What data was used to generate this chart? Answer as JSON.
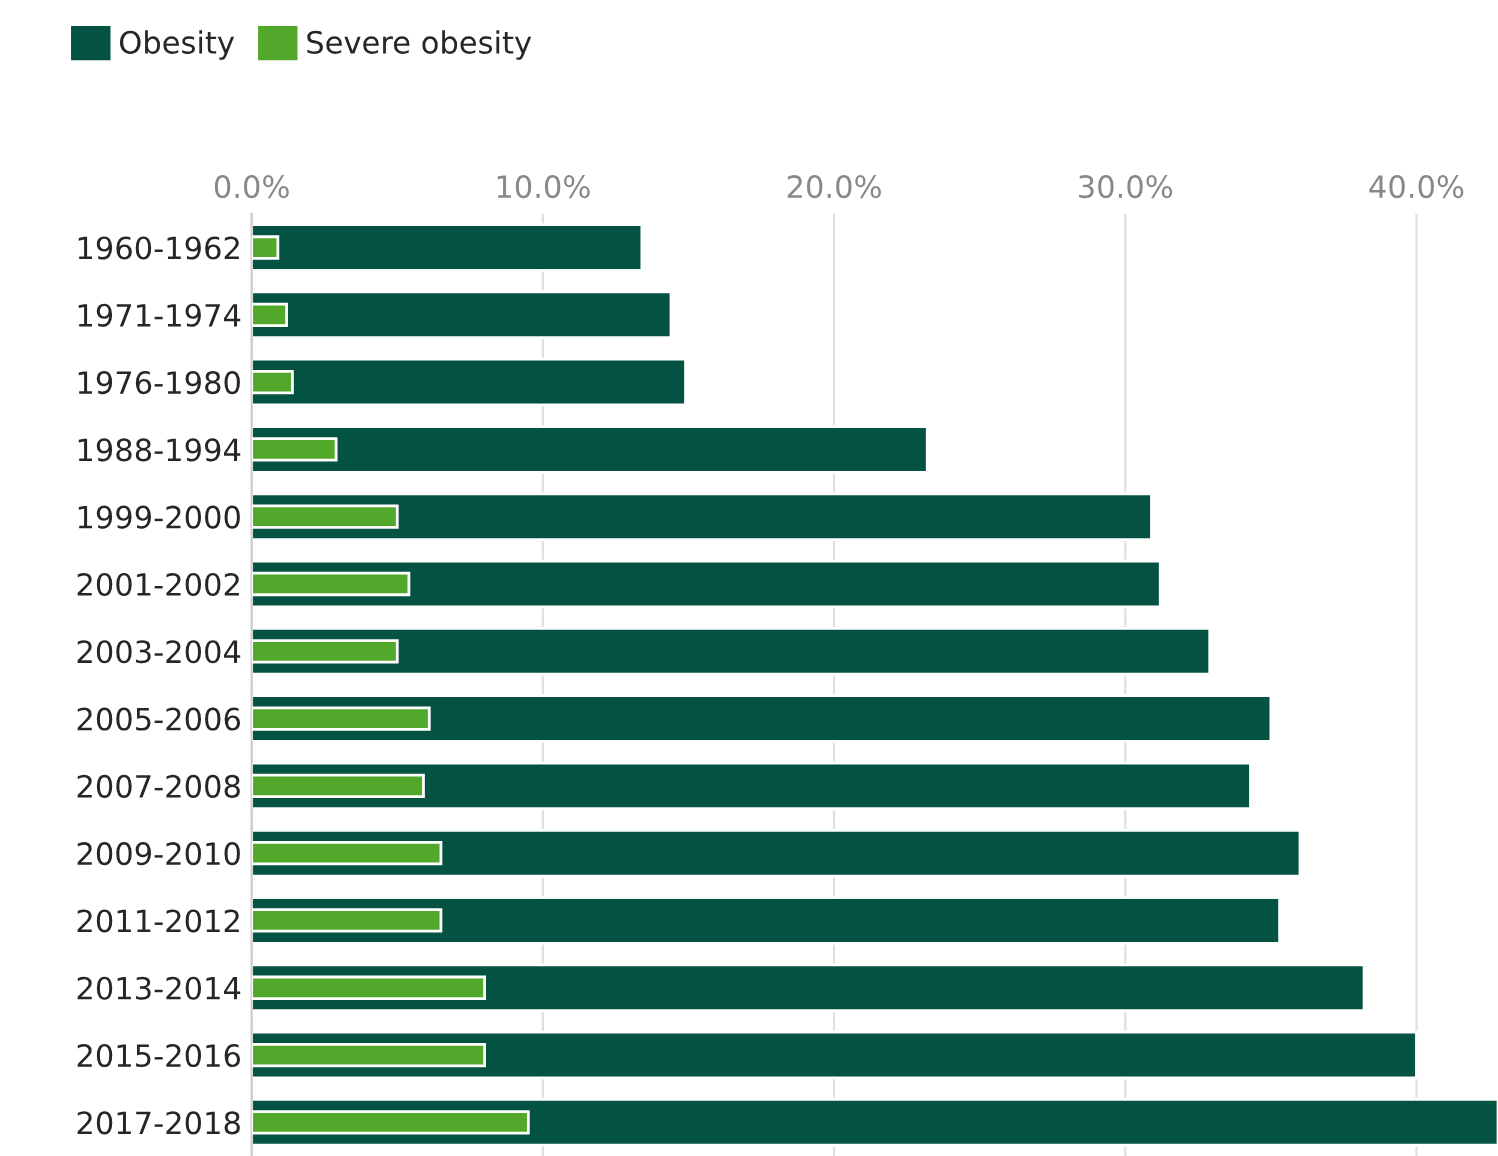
{
  "chart_data": {
    "type": "bar",
    "orientation": "horizontal",
    "categories": [
      "1960-1962",
      "1971-1974",
      "1976-1980",
      "1988-1994",
      "1999-2000",
      "2001-2002",
      "2003-2004",
      "2005-2006",
      "2007-2008",
      "2009-2010",
      "2011-2012",
      "2013-2014",
      "2015-2016",
      "2017-2018"
    ],
    "series": [
      {
        "name": "Obesity",
        "color": "#035242",
        "values": [
          13.4,
          14.4,
          14.9,
          23.2,
          30.9,
          31.2,
          32.9,
          35.0,
          34.3,
          36.0,
          35.3,
          38.2,
          40.0,
          42.8
        ]
      },
      {
        "name": "Severe obesity",
        "color": "#52a82a",
        "values": [
          0.9,
          1.2,
          1.4,
          2.9,
          5.0,
          5.4,
          5.0,
          6.1,
          5.9,
          6.5,
          6.5,
          8.0,
          8.0,
          9.5
        ]
      }
    ],
    "xlim": [
      0,
      42.8
    ],
    "xticks": [
      {
        "value": 0,
        "label": "0.0%"
      },
      {
        "value": 10,
        "label": "10.0%"
      },
      {
        "value": 20,
        "label": "20.0%"
      },
      {
        "value": 30,
        "label": "30.0%"
      },
      {
        "value": 40,
        "label": "40.0%"
      }
    ],
    "grid": "x",
    "legend": "top left"
  }
}
